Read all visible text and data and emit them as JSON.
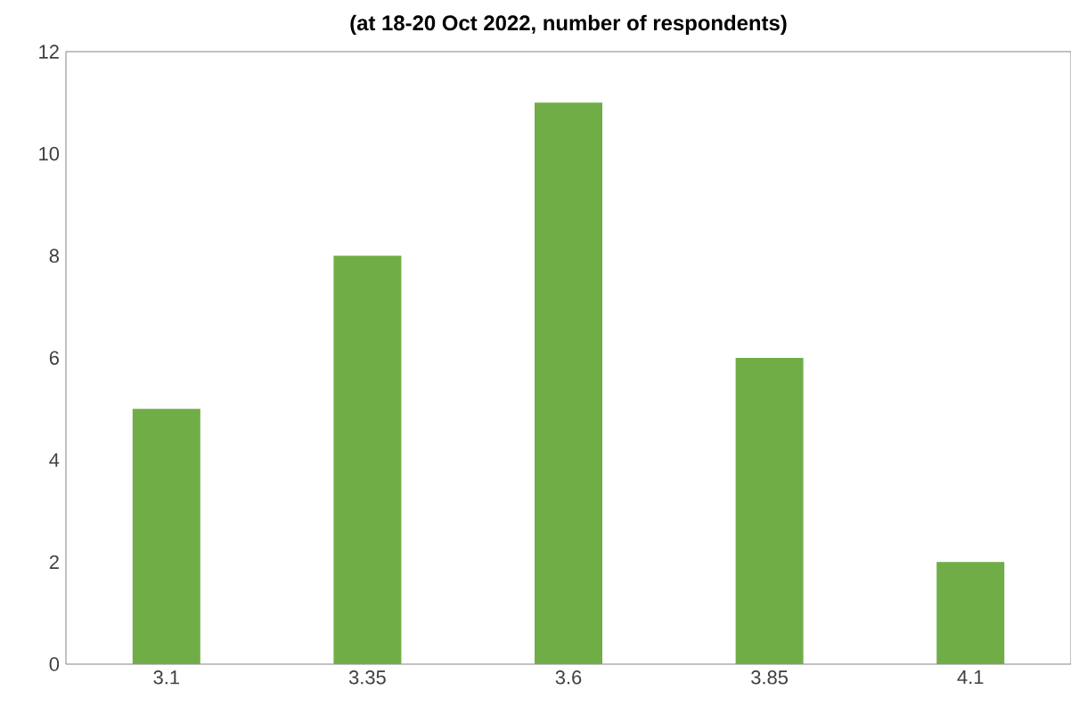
{
  "chart_data": {
    "type": "bar",
    "title": "(at 18-20 Oct 2022, number of respondents)",
    "categories": [
      "3.1",
      "3.35",
      "3.6",
      "3.85",
      "4.1"
    ],
    "values": [
      5,
      8,
      11,
      6,
      2
    ],
    "color": "#70ad47",
    "ylim": [
      0,
      12
    ],
    "yticks": [
      0,
      2,
      4,
      6,
      8,
      10,
      12
    ],
    "grid": false
  }
}
